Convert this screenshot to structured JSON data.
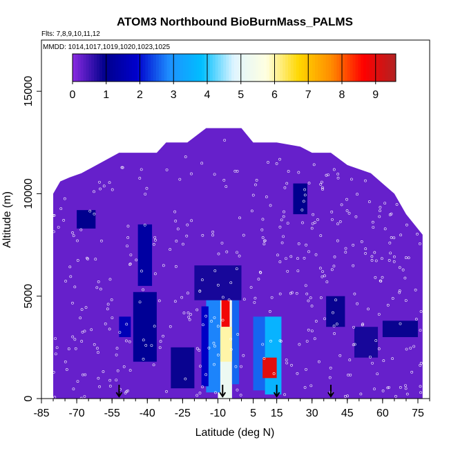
{
  "chart_data": {
    "type": "heatmap",
    "title": "ATOM3 Northbound BioBurnMass_PALMS",
    "subtitle_flights": "Flts: 7,8,9,10,11,12",
    "subtitle_dates": "MMDD: 1014,1017,1019,1020,1023,1025",
    "xlabel": "Latitude (deg N)",
    "ylabel": "Altitude (m)",
    "xlim": [
      -85,
      80
    ],
    "ylim": [
      0,
      17500
    ],
    "x_ticks": [
      -85,
      -70,
      -55,
      -40,
      -25,
      -10,
      5,
      15,
      30,
      45,
      60,
      75
    ],
    "y_ticks": [
      0,
      5000,
      10000,
      15000
    ],
    "colorbar": {
      "ticks": [
        0,
        1,
        2,
        3,
        4,
        5,
        6,
        7,
        8,
        9
      ],
      "min": 0,
      "max": 9.6,
      "colors": [
        "#8a2be2",
        "#00008b",
        "#0000cd",
        "#1e90ff",
        "#00bfff",
        "#e0f5ff",
        "#ffffe0",
        "#ffd700",
        "#ff8c00",
        "#ff0000",
        "#b22222"
      ]
    },
    "domain": {
      "lat_min": -80,
      "lat_max": 77,
      "background_value": 0.25,
      "top_profile": [
        [
          -80,
          10000
        ],
        [
          -77,
          10600
        ],
        [
          -73,
          10800
        ],
        [
          -68,
          11000
        ],
        [
          -60,
          11500
        ],
        [
          -52,
          12000
        ],
        [
          -45,
          12000
        ],
        [
          -36,
          12000
        ],
        [
          -32,
          12500
        ],
        [
          -23,
          12500
        ],
        [
          -15,
          13200
        ],
        [
          -5,
          13200
        ],
        [
          0,
          13200
        ],
        [
          5,
          12500
        ],
        [
          15,
          12500
        ],
        [
          25,
          12300
        ],
        [
          30,
          12000
        ],
        [
          38,
          12000
        ],
        [
          45,
          11400
        ],
        [
          55,
          11000
        ],
        [
          60,
          10500
        ],
        [
          65,
          10000
        ],
        [
          70,
          9000
        ],
        [
          77,
          8000
        ]
      ]
    },
    "features": [
      {
        "lat": [
          -10,
          -4
        ],
        "alt": [
          0,
          5000
        ],
        "value": 5.2
      },
      {
        "lat": [
          -8.5,
          -5
        ],
        "alt": [
          3500,
          5000
        ],
        "value": 8.8
      },
      {
        "lat": [
          -9.5,
          -4
        ],
        "alt": [
          1800,
          3500
        ],
        "value": 6.0
      },
      {
        "lat": [
          -15,
          -9
        ],
        "alt": [
          300,
          5000
        ],
        "value": 2.8
      },
      {
        "lat": [
          -4,
          -1
        ],
        "alt": [
          700,
          4800
        ],
        "value": 2.6
      },
      {
        "lat": [
          -17,
          -14
        ],
        "alt": [
          600,
          4500
        ],
        "value": 1.8
      },
      {
        "lat": [
          5,
          10
        ],
        "alt": [
          400,
          4000
        ],
        "value": 2.6
      },
      {
        "lat": [
          10,
          17
        ],
        "alt": [
          200,
          4000
        ],
        "value": 3.6
      },
      {
        "lat": [
          9,
          15
        ],
        "alt": [
          1000,
          2000
        ],
        "value": 9.0
      },
      {
        "lat": [
          -44,
          -38
        ],
        "alt": [
          5500,
          8500
        ],
        "value": 1.3
      },
      {
        "lat": [
          -46,
          -36
        ],
        "alt": [
          1800,
          5200
        ],
        "value": 1.1
      },
      {
        "lat": [
          -70,
          -62
        ],
        "alt": [
          8300,
          9200
        ],
        "value": 1.0
      },
      {
        "lat": [
          22,
          28
        ],
        "alt": [
          9000,
          10500
        ],
        "value": 1.0
      },
      {
        "lat": [
          -20,
          0
        ],
        "alt": [
          4800,
          6500
        ],
        "value": 0.8
      },
      {
        "lat": [
          -52,
          -47
        ],
        "alt": [
          3000,
          4000
        ],
        "value": 1.6
      },
      {
        "lat": [
          36,
          44
        ],
        "alt": [
          3500,
          5000
        ],
        "value": 0.9
      },
      {
        "lat": [
          48,
          58
        ],
        "alt": [
          2000,
          3500
        ],
        "value": 0.8
      },
      {
        "lat": [
          -30,
          -20
        ],
        "alt": [
          500,
          2500
        ],
        "value": 0.9
      },
      {
        "lat": [
          60,
          75
        ],
        "alt": [
          3000,
          3800
        ],
        "value": 0.9
      }
    ],
    "arrow_latitudes": [
      -52,
      -8,
      15,
      38
    ]
  }
}
